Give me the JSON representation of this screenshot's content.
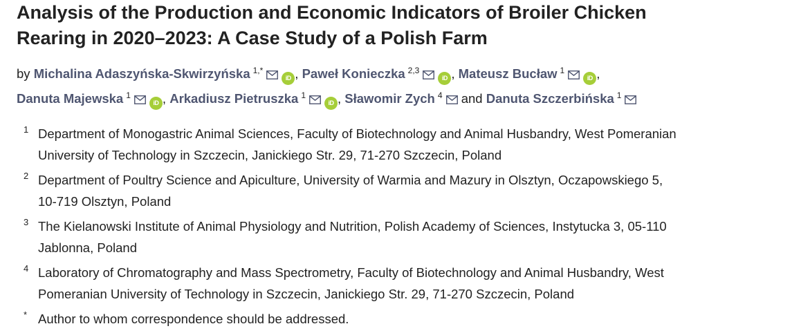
{
  "title_lines": [
    "Analysis of the Production and Economic Indicators of Broiler Chicken",
    "Rearing in 2020–2023: A Case Study of a Polish Farm"
  ],
  "byline": {
    "by": "by",
    "and": "and"
  },
  "authors": [
    {
      "name": "Michalina Adaszyńska-Skwirzyńska",
      "sup": "1,*",
      "separator": ","
    },
    {
      "name": "Paweł Konieczka",
      "sup": "2,3",
      "separator": ","
    },
    {
      "name": "Mateusz Bucław",
      "sup": "1",
      "separator": ","
    },
    {
      "name": "Danuta Majewska",
      "sup": "1",
      "separator": ","
    },
    {
      "name": "Arkadiusz Pietruszka",
      "sup": "1",
      "separator": ","
    },
    {
      "name": "Sławomir Zych",
      "sup": "4",
      "separator": ""
    },
    {
      "name": "Danuta Szczerbińska",
      "sup": "1",
      "separator": ""
    }
  ],
  "orcid_label": "iD",
  "affiliations": [
    {
      "num": "1",
      "lines": [
        "Department of Monogastric Animal Sciences, Faculty of Biotechnology and Animal Husbandry, West Pomeranian",
        "University of Technology in Szczecin, Janickiego Str. 29, 71-270 Szczecin, Poland"
      ]
    },
    {
      "num": "2",
      "lines": [
        "Department of Poultry Science and Apiculture, University of Warmia and Mazury in Olsztyn, Oczapowskiego 5,",
        "10-719 Olsztyn, Poland"
      ]
    },
    {
      "num": "3",
      "lines": [
        "The Kielanowski Institute of Animal Physiology and Nutrition, Polish Academy of Sciences, Instytucka 3, 05-110",
        "Jablonna, Poland"
      ]
    },
    {
      "num": "4",
      "lines": [
        "Laboratory of Chromatography and Mass Spectrometry, Faculty of Biotechnology and Animal Husbandry, West",
        "Pomeranian University of Technology in Szczecin, Janickiego Str. 29, 71-270 Szczecin, Poland"
      ]
    },
    {
      "num": "*",
      "lines": [
        "Author to whom correspondence should be addressed."
      ]
    }
  ],
  "colors": {
    "author_link": "#4f5671",
    "orcid": "#a6ce39",
    "text": "#222222"
  },
  "icons": {
    "mail": "envelope-icon",
    "orcid": "orcid-icon"
  }
}
